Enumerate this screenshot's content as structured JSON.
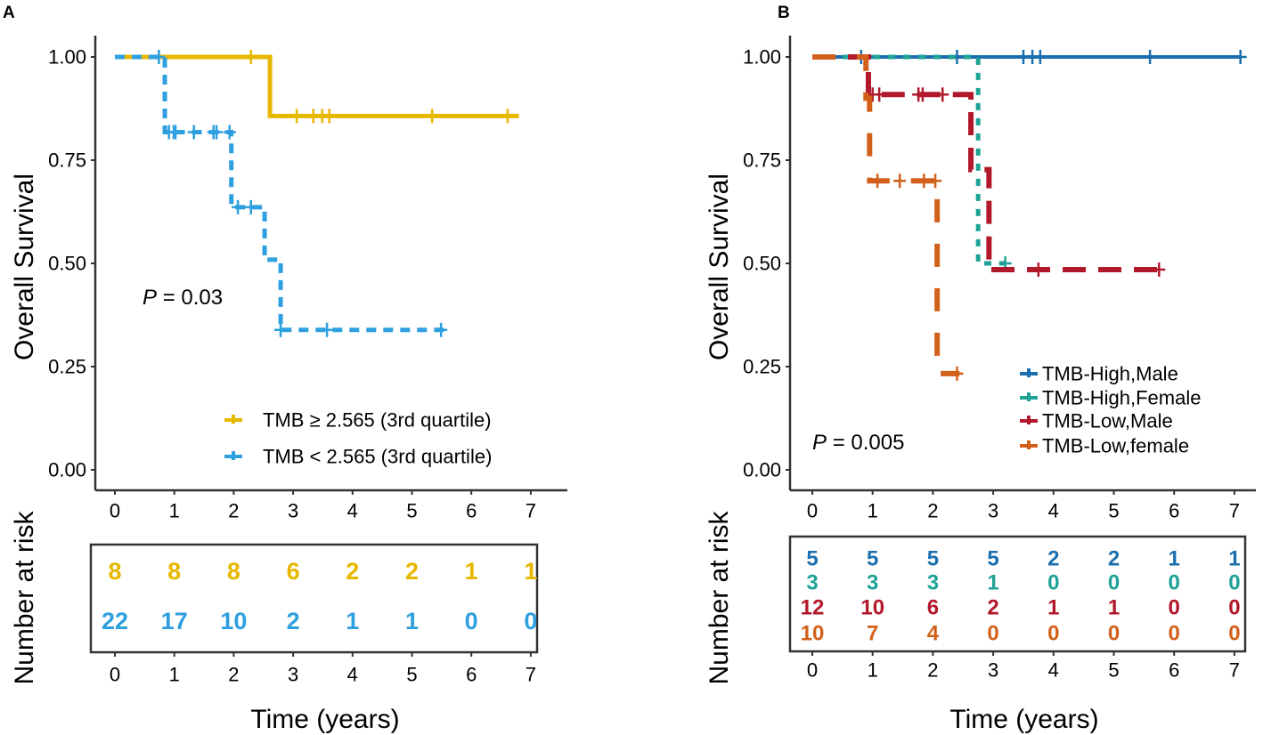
{
  "chart_data": [
    {
      "panel_label": "A",
      "type": "line",
      "subtype": "kaplan-meier",
      "ylabel": "Overall Survival",
      "xlabel": "Time (years)",
      "xlim": [
        0,
        7
      ],
      "ylim": [
        0,
        1
      ],
      "xticks": [
        "0",
        "1",
        "2",
        "3",
        "4",
        "5",
        "6",
        "7"
      ],
      "yticks": [
        "0.00",
        "0.25",
        "0.50",
        "0.75",
        "1.00"
      ],
      "grid": false,
      "legend_placement": "bottom-right",
      "pvalue": {
        "symbol": "P",
        "text": "= 0.03"
      },
      "series": [
        {
          "name": "TMB ≥ 2.565 (3rd quartile)",
          "color": "#E7B800",
          "style": "solid",
          "steps": [
            [
              2.61,
              0.857
            ]
          ],
          "censored": [
            2.29,
            3.06,
            3.34,
            3.49,
            3.61,
            5.34,
            6.61
          ],
          "end": 6.8
        },
        {
          "name": "TMB < 2.565 (3rd quartile)",
          "color": "#2E9FDF",
          "style": "dashed",
          "steps": [
            [
              0.84,
              0.818
            ],
            [
              1.96,
              0.636
            ],
            [
              2.52,
              0.509
            ],
            [
              2.79,
              0.339
            ]
          ],
          "censored": [
            0.74,
            0.91,
            0.99,
            1.02,
            1.33,
            1.66,
            1.71,
            1.93,
            2.07,
            2.29,
            2.79,
            3.57,
            5.49
          ],
          "end": 5.59
        }
      ],
      "risk_table": {
        "ylabel": "Number at risk",
        "rows": [
          {
            "color": "#E7B800",
            "values": [
              "8",
              "8",
              "8",
              "6",
              "2",
              "2",
              "1",
              "1"
            ]
          },
          {
            "color": "#2E9FDF",
            "values": [
              "22",
              "17",
              "10",
              "2",
              "1",
              "1",
              "0",
              "0"
            ]
          }
        ]
      }
    },
    {
      "panel_label": "B",
      "type": "line",
      "subtype": "kaplan-meier",
      "ylabel": "Overall Survival",
      "xlabel": "Time (years)",
      "xlim": [
        0,
        7
      ],
      "ylim": [
        0,
        1
      ],
      "xticks": [
        "0",
        "1",
        "2",
        "3",
        "4",
        "5",
        "6",
        "7"
      ],
      "yticks": [
        "0.00",
        "0.25",
        "0.50",
        "0.75",
        "1.00"
      ],
      "grid": false,
      "legend_placement": "bottom-right",
      "pvalue": {
        "symbol": "P",
        "text": "= 0.005"
      },
      "series": [
        {
          "name": "TMB-High,Male",
          "color": "#1B6FAE",
          "style": "solid",
          "steps": [],
          "censored": [
            0.81,
            2.4,
            3.5,
            3.65,
            3.78,
            5.6,
            7.1
          ],
          "end": 7.1
        },
        {
          "name": "TMB-High,Female",
          "color": "#1FA296",
          "style": "dotted",
          "steps": [
            [
              2.75,
              0.5
            ]
          ],
          "censored": [
            3.2
          ],
          "end": 3.25
        },
        {
          "name": "TMB-Low,Male",
          "color": "#B2182B",
          "style": "longdash",
          "steps": [
            [
              0.93,
              0.909
            ],
            [
              2.63,
              0.727
            ],
            [
              2.93,
              0.485
            ]
          ],
          "censored": [
            1.0,
            1.11,
            1.76,
            1.83,
            2.16,
            3.75,
            5.75
          ],
          "end": 5.78
        },
        {
          "name": "TMB-Low,female",
          "color": "#D2601A",
          "style": "twodash",
          "steps": [
            [
              0.89,
              0.9
            ],
            [
              0.95,
              0.7
            ],
            [
              2.07,
              0.233
            ]
          ],
          "censored": [
            1.08,
            1.45,
            1.85,
            2.04,
            2.4
          ],
          "end": 2.44
        }
      ],
      "risk_table": {
        "ylabel": "Number at risk",
        "rows": [
          {
            "color": "#1B6FAE",
            "values": [
              "5",
              "5",
              "5",
              "5",
              "2",
              "2",
              "1",
              "1"
            ]
          },
          {
            "color": "#1FA296",
            "values": [
              "3",
              "3",
              "3",
              "1",
              "0",
              "0",
              "0",
              "0"
            ]
          },
          {
            "color": "#B2182B",
            "values": [
              "12",
              "10",
              "6",
              "2",
              "1",
              "1",
              "0",
              "0"
            ]
          },
          {
            "color": "#D2601A",
            "values": [
              "10",
              "7",
              "4",
              "0",
              "0",
              "0",
              "0",
              "0"
            ]
          }
        ]
      }
    }
  ]
}
